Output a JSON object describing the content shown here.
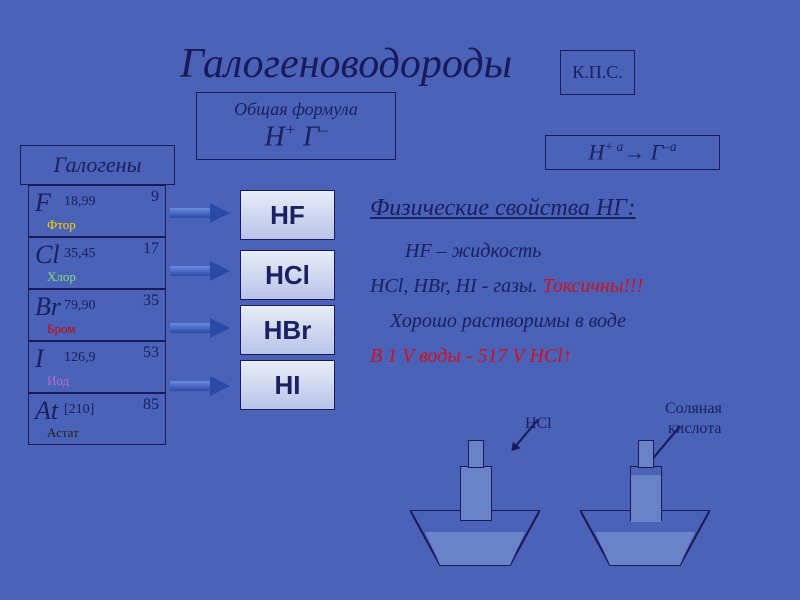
{
  "title": "Галогеноводороды",
  "formula_box": {
    "label": "Общая формула",
    "formula_html": "Н<span class='sup'>+</span> Г<span class='sup'>–</span>"
  },
  "kps": "К.П.С.",
  "transition_html": "Н<span class='sup'>+ а</span>→ Г<span class='sup'>–а</span>",
  "halogens_label": "Галогены",
  "elements": [
    {
      "sym": "F",
      "mass": "18,99",
      "num": "9",
      "name": "Фтор",
      "name_color": "name-f"
    },
    {
      "sym": "Cl",
      "mass": "35,45",
      "num": "17",
      "name": "Хлор",
      "name_color": "name-cl"
    },
    {
      "sym": "Br",
      "mass": "79,90",
      "num": "35",
      "name": "Бром",
      "name_color": "name-br"
    },
    {
      "sym": "I",
      "mass": "126,9",
      "num": "53",
      "name": "Иод",
      "name_color": "name-i"
    },
    {
      "sym": "At",
      "mass": "[210]",
      "num": "85",
      "name": "Астат",
      "name_color": "name-at"
    }
  ],
  "products": [
    "HF",
    "HCl",
    "HBr",
    "HI"
  ],
  "props_title": "Физические свойства  HГ:",
  "prop1": "HF – жидкость",
  "prop2_a": "HCl, HBr, HI -  газы. ",
  "prop2_b": "Токсичны!!!",
  "prop3": "Хорошо растворимы в воде",
  "prop4": "В 1 V воды  - 517 V  HCl↑",
  "beaker_lbl1": "HCl",
  "beaker_lbl2": "Соляная",
  "beaker_lbl3": "кислота",
  "colors": {
    "bg": "#4a62b8",
    "ink": "#1a2060",
    "red": "#d01020",
    "box_fill_top": "#e8ecf8",
    "box_fill_bot": "#b8c4e8",
    "beaker_fill": "#6a82c8"
  },
  "layout": {
    "elem_row_h": 52,
    "arrow_tops": [
      205,
      263,
      320,
      378
    ],
    "prod_tops": [
      190,
      250,
      305,
      360
    ]
  }
}
